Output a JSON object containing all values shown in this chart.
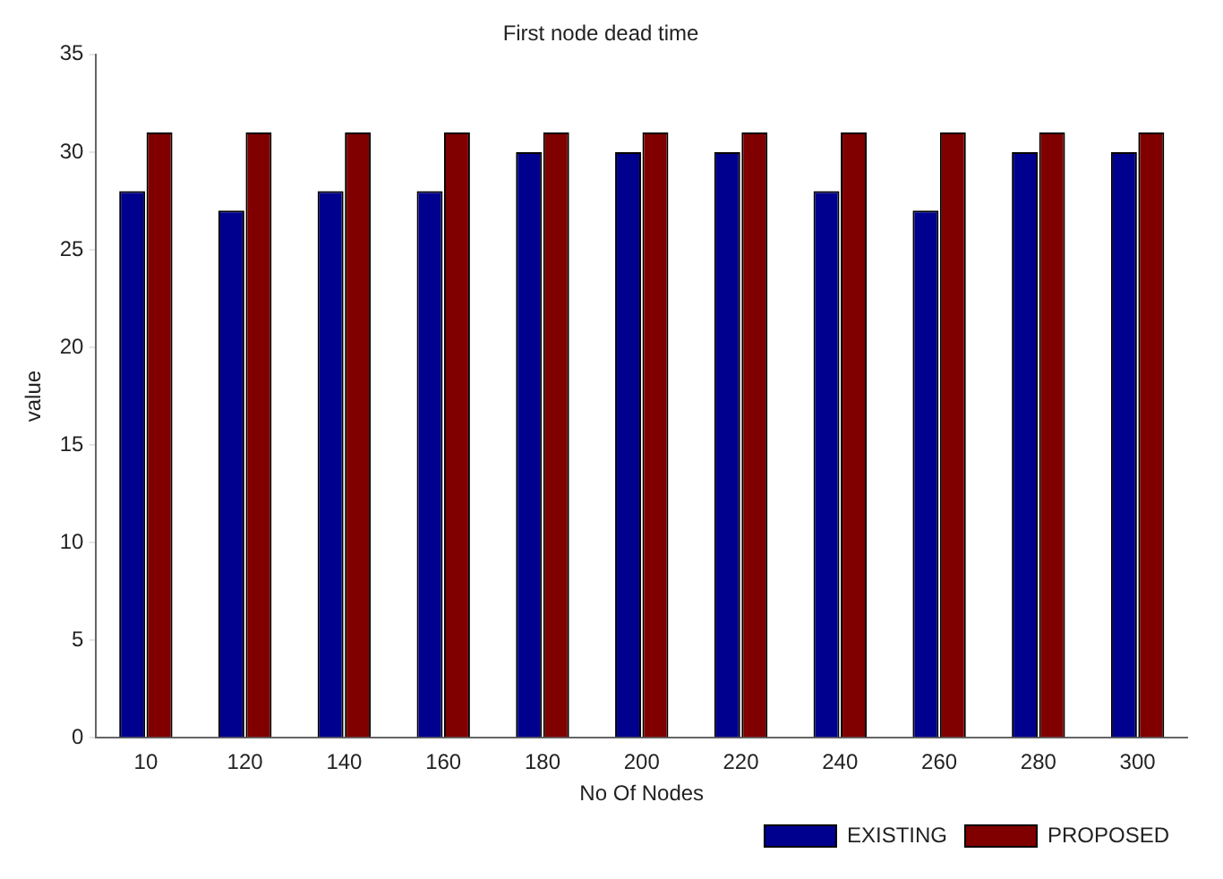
{
  "chart_data": {
    "type": "bar",
    "title": "First node dead time",
    "xlabel": "No Of Nodes",
    "ylabel": "value",
    "categories": [
      "10",
      "120",
      "140",
      "160",
      "180",
      "200",
      "220",
      "240",
      "260",
      "280",
      "300"
    ],
    "series": [
      {
        "name": "EXISTING",
        "color": "#00008f",
        "values": [
          28,
          27,
          28,
          28,
          30,
          30,
          30,
          28,
          27,
          30,
          30
        ]
      },
      {
        "name": "PROPOSED",
        "color": "#800000",
        "values": [
          31,
          31,
          31,
          31,
          31,
          31,
          31,
          31,
          31,
          31,
          31
        ]
      }
    ],
    "ylim": [
      0,
      35
    ],
    "yticks": [
      0,
      5,
      10,
      15,
      20,
      25,
      30,
      35
    ],
    "grid": false,
    "legend": "bottom right"
  }
}
